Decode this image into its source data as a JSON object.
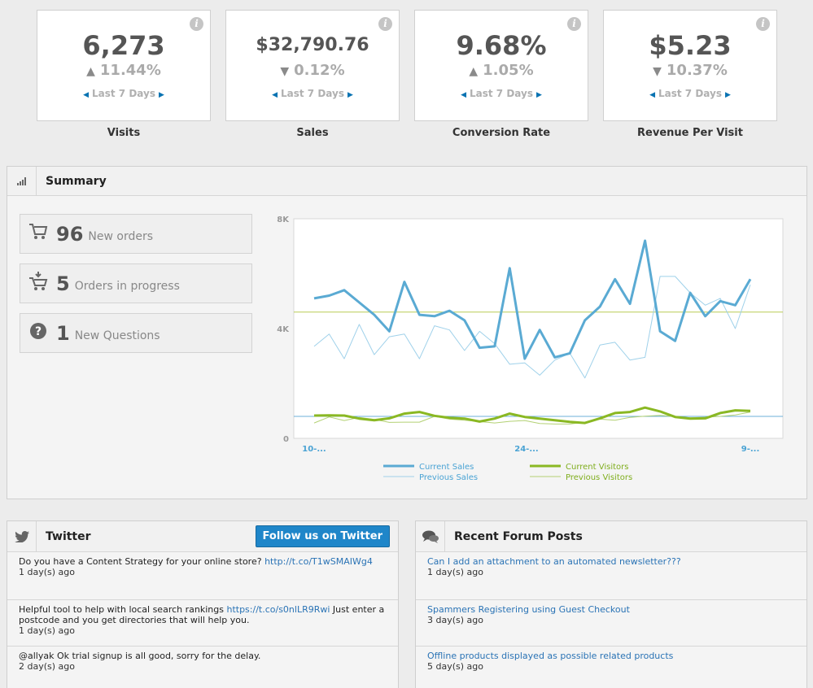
{
  "kpis": [
    {
      "value": "6,273",
      "direction": "up",
      "change": "11.44%",
      "period": "Last 7 Days",
      "label": "Visits"
    },
    {
      "value": "$32,790.76",
      "direction": "down",
      "change": "0.12%",
      "period": "Last 7 Days",
      "label": "Sales"
    },
    {
      "value": "9.68%",
      "direction": "up",
      "change": "1.05%",
      "period": "Last 7 Days",
      "label": "Conversion Rate"
    },
    {
      "value": "$5.23",
      "direction": "down",
      "change": "10.37%",
      "period": "Last 7 Days",
      "label": "Revenue Per Visit"
    }
  ],
  "summary": {
    "title": "Summary",
    "stats": [
      {
        "icon": "cart-icon",
        "number": "96",
        "text": "New orders"
      },
      {
        "icon": "cart-progress-icon",
        "number": "5",
        "text": "Orders in progress"
      },
      {
        "icon": "question-icon",
        "number": "1",
        "text": "New Questions"
      }
    ]
  },
  "chart_data": {
    "type": "line",
    "y_ticks": [
      "8K",
      "4K",
      "0"
    ],
    "x_ticks": [
      "10-...",
      "24-...",
      "9-..."
    ],
    "ylim": [
      0,
      8000
    ],
    "reference_lines": [
      {
        "value": 4600,
        "color": "#b8cc55"
      },
      {
        "value": 800,
        "color": "#6cb0d8"
      }
    ],
    "series": [
      {
        "name": "Current Sales",
        "color": "#5aaad3",
        "width": 3,
        "values": [
          5100,
          5200,
          5400,
          4950,
          4500,
          3900,
          5700,
          4500,
          4450,
          4650,
          4300,
          3300,
          3350,
          6200,
          2900,
          3950,
          2950,
          3100,
          4300,
          4800,
          5800,
          4900,
          7200,
          3900,
          3550,
          5300,
          4450,
          5000,
          4850,
          5800
        ]
      },
      {
        "name": "Previous Sales",
        "color": "#9fd1ea",
        "width": 1,
        "values": [
          3350,
          3800,
          2900,
          4150,
          3050,
          3700,
          3800,
          2900,
          4100,
          3950,
          3200,
          3900,
          3450,
          2700,
          2750,
          2300,
          2850,
          3100,
          2200,
          3400,
          3500,
          2850,
          2950,
          5900,
          5900,
          5300,
          4850,
          5100,
          4000,
          5600
        ]
      },
      {
        "name": "Current Visitors",
        "color": "#8ab823",
        "width": 3,
        "values": [
          830,
          840,
          830,
          720,
          660,
          730,
          900,
          960,
          820,
          750,
          720,
          610,
          720,
          900,
          780,
          720,
          660,
          600,
          560,
          730,
          920,
          960,
          1120,
          980,
          780,
          720,
          730,
          920,
          1020,
          1000
        ]
      },
      {
        "name": "Previous Visitors",
        "color": "#b3d174",
        "width": 1,
        "values": [
          560,
          780,
          650,
          760,
          690,
          580,
          590,
          590,
          800,
          700,
          660,
          610,
          560,
          620,
          650,
          540,
          520,
          520,
          590,
          700,
          660,
          760,
          810,
          840,
          790,
          750,
          770,
          800,
          850,
          960
        ]
      }
    ]
  },
  "twitter": {
    "title": "Twitter",
    "follow_label": "Follow us on Twitter",
    "items": [
      {
        "text": "Do you have a Content Strategy for your online store? ",
        "link": "http://t.co/T1wSMAIWg4",
        "rest": "",
        "time": "1 day(s) ago"
      },
      {
        "text": "Helpful tool to help with local search rankings ",
        "link": "https://t.co/s0nlLR9Rwi",
        "rest": " Just enter a postcode and you get directories that will help you.",
        "time": "1 day(s) ago"
      },
      {
        "text": "@allyak Ok trial signup is all good, sorry for the delay.",
        "link": "",
        "rest": "",
        "time": "2 day(s) ago"
      }
    ]
  },
  "forum": {
    "title": "Recent Forum Posts",
    "items": [
      {
        "title": "Can I add an attachment to an automated newsletter???",
        "time": "1 day(s) ago"
      },
      {
        "title": "Spammers Registering using Guest Checkout",
        "time": "3 day(s) ago"
      },
      {
        "title": "Offline products displayed as possible related products",
        "time": "5 day(s) ago"
      }
    ]
  },
  "colors": {
    "link": "#2a73b5",
    "button": "#1f86c9",
    "sales": "#5aaad3",
    "visitors": "#8ab823"
  }
}
